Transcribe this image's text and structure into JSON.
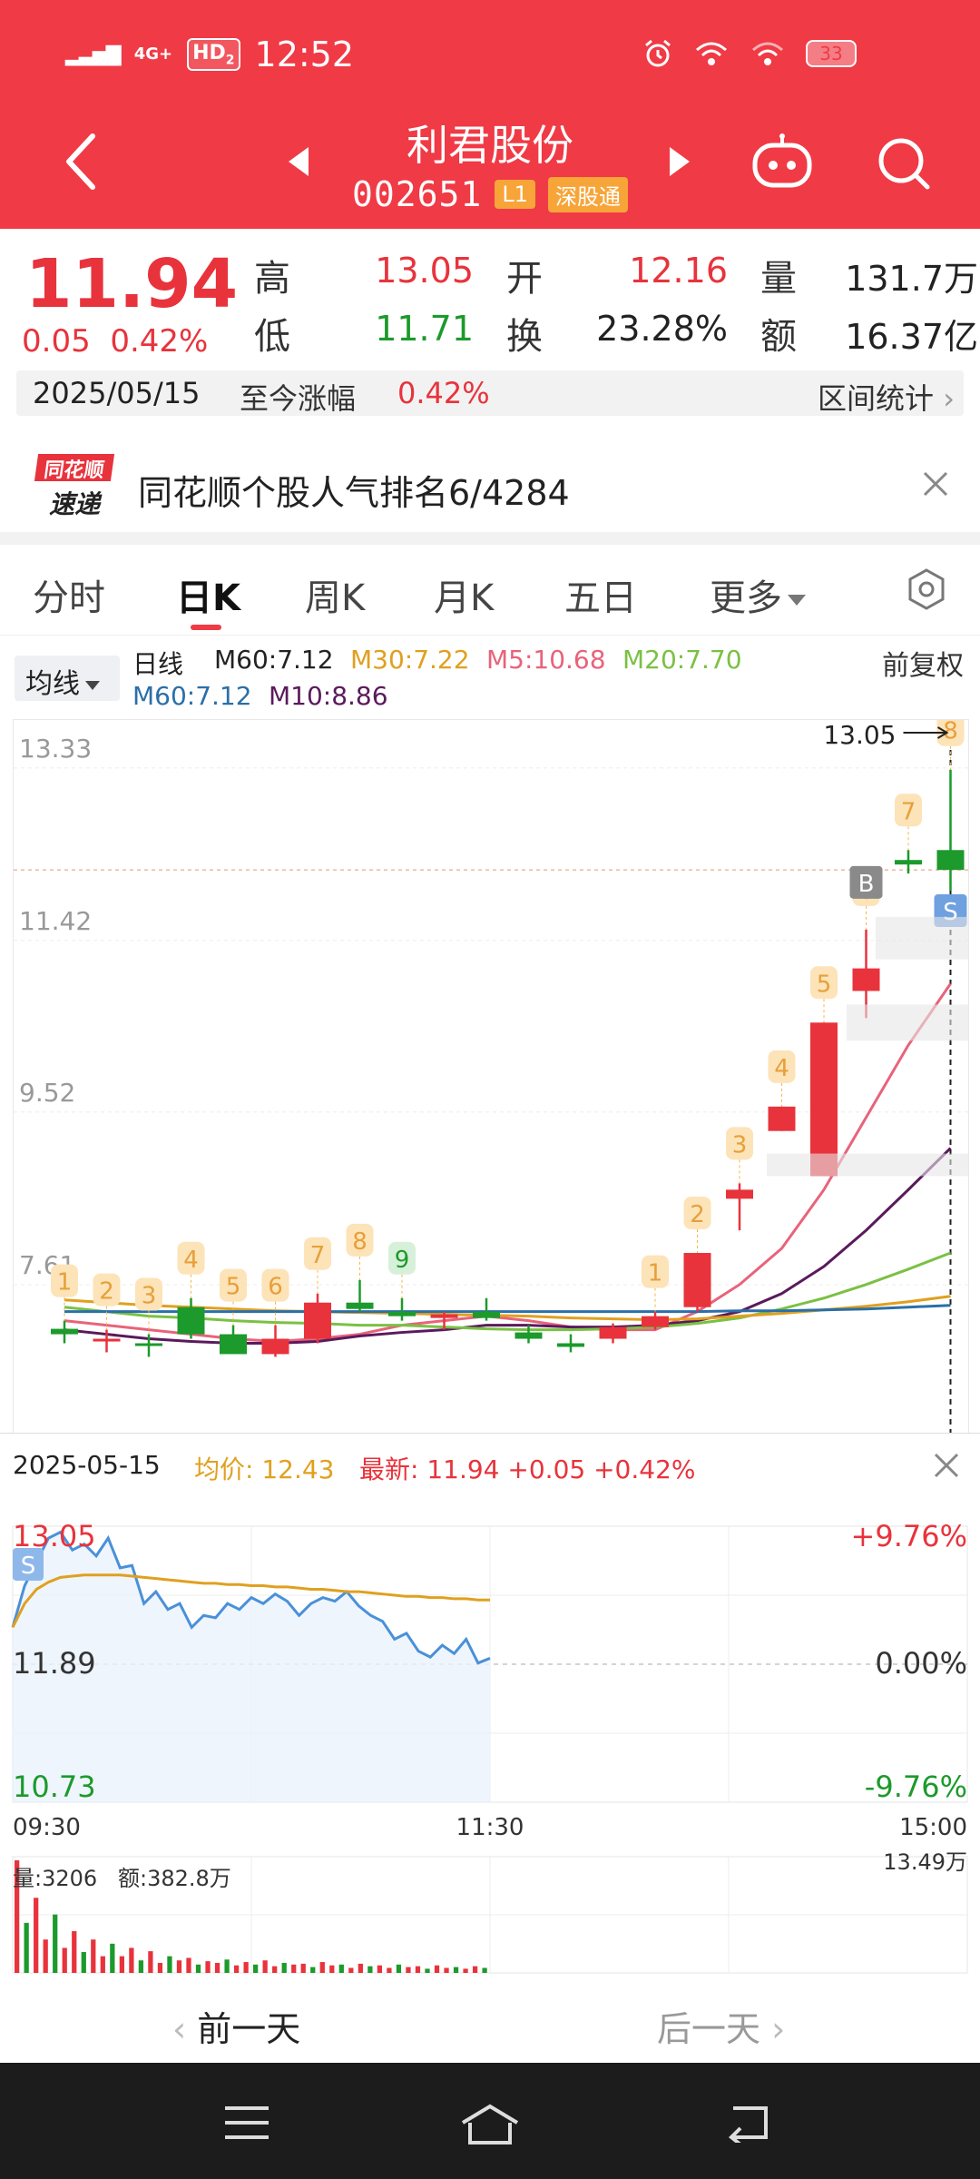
{
  "status": {
    "network": "4G+",
    "hd": "HD",
    "hd_sub": "2",
    "time": "12:52",
    "battery": "33"
  },
  "header": {
    "title": "利君股份",
    "code": "002651",
    "level_badge": "L1",
    "connect_badge": "深股通",
    "icons": [
      "back-icon",
      "prev-stock-icon",
      "next-stock-icon",
      "robot-icon",
      "search-icon"
    ]
  },
  "quote": {
    "price": "11.94",
    "change": "0.05",
    "change_pct": "0.42%",
    "high_label": "高",
    "high": "13.05",
    "open_label": "开",
    "open": "12.16",
    "volume_label": "量",
    "volume": "131.7万",
    "low_label": "低",
    "low": "11.71",
    "turnover_label": "换",
    "turnover": "23.28%",
    "amount_label": "额",
    "amount": "16.37亿",
    "range_date": "2025/05/15",
    "range_label": "至今涨幅",
    "range_value": "0.42%",
    "range_stat": "区间统计"
  },
  "rank": {
    "logo_top": "同花顺",
    "logo_bottom": "速递",
    "text": "同花顺个股人气排名6/4284"
  },
  "tabs": [
    "分时",
    "日K",
    "周K",
    "月K",
    "五日",
    "更多"
  ],
  "active_tab": "日K",
  "ma_legend": {
    "selector": "均线",
    "line_type": "日线",
    "items": [
      {
        "label": "M60:7.12",
        "color": "#222222"
      },
      {
        "label": "M30:7.22",
        "color": "#e0a01f"
      },
      {
        "label": "M5:10.68",
        "color": "#e8637a"
      },
      {
        "label": "M20:7.70",
        "color": "#7ac143"
      },
      {
        "label": "M60:7.12",
        "color": "#2a6fa8"
      },
      {
        "label": "M10:8.86",
        "color": "#5a1a5c"
      }
    ],
    "adjust": "前复权"
  },
  "chart_data": [
    {
      "type": "candlestick",
      "y_tick_labels": [
        "13.33",
        "11.42",
        "9.52",
        "7.61"
      ],
      "high_marker": "13.05",
      "ylim": [
        5.7,
        13.6
      ],
      "candles": [
        {
          "o": 6.86,
          "h": 6.95,
          "l": 6.7,
          "c": 6.8,
          "label": "1"
        },
        {
          "o": 6.72,
          "h": 6.85,
          "l": 6.6,
          "c": 6.75,
          "label": "2"
        },
        {
          "o": 6.7,
          "h": 6.8,
          "l": 6.55,
          "c": 6.68,
          "label": "3"
        },
        {
          "o": 7.1,
          "h": 7.2,
          "l": 6.75,
          "c": 6.8,
          "label": "4"
        },
        {
          "o": 6.8,
          "h": 6.9,
          "l": 6.65,
          "c": 6.58,
          "label": "5"
        },
        {
          "o": 6.58,
          "h": 6.9,
          "l": 6.55,
          "c": 6.75,
          "label": "6"
        },
        {
          "o": 6.75,
          "h": 7.25,
          "l": 6.7,
          "c": 7.15,
          "label": "7"
        },
        {
          "o": 7.15,
          "h": 7.4,
          "l": 7.05,
          "c": 7.08,
          "label": "8"
        },
        {
          "o": 7.05,
          "h": 7.2,
          "l": 6.95,
          "c": 7.0,
          "label": "9"
        },
        {
          "o": 6.98,
          "h": 7.05,
          "l": 6.85,
          "c": 7.02,
          "label": ""
        },
        {
          "o": 7.05,
          "h": 7.2,
          "l": 6.95,
          "c": 6.98,
          "label": ""
        },
        {
          "o": 6.82,
          "h": 6.9,
          "l": 6.7,
          "c": 6.75,
          "label": ""
        },
        {
          "o": 6.7,
          "h": 6.8,
          "l": 6.6,
          "c": 6.66,
          "label": ""
        },
        {
          "o": 6.75,
          "h": 6.92,
          "l": 6.7,
          "c": 6.88,
          "label": ""
        },
        {
          "o": 6.88,
          "h": 7.05,
          "l": 6.85,
          "c": 7.0,
          "label": "1"
        },
        {
          "o": 7.1,
          "h": 7.7,
          "l": 7.05,
          "c": 7.7,
          "label": "2"
        },
        {
          "o": 8.3,
          "h": 8.47,
          "l": 7.95,
          "c": 8.4,
          "label": "3"
        },
        {
          "o": 9.05,
          "h": 9.32,
          "l": 9.05,
          "c": 9.32,
          "label": "4"
        },
        {
          "o": 8.55,
          "h": 10.25,
          "l": 8.55,
          "c": 10.25,
          "label": "5"
        },
        {
          "o": 10.6,
          "h": 11.28,
          "l": 10.3,
          "c": 10.85,
          "label": "6"
        },
        {
          "o": 12.05,
          "h": 12.16,
          "l": 11.9,
          "c": 12.0,
          "label": "7"
        },
        {
          "o": 12.16,
          "h": 13.05,
          "l": 11.71,
          "c": 11.94,
          "label": "8"
        }
      ],
      "trade_marks": [
        {
          "index": 19,
          "text": "B"
        },
        {
          "index": 21,
          "text": "S"
        }
      ],
      "ma_lines": [
        {
          "name": "M5",
          "color": "#e8637a",
          "values": [
            6.95,
            6.9,
            6.85,
            6.8,
            6.75,
            6.72,
            6.75,
            6.8,
            6.9,
            6.95,
            7.0,
            6.95,
            6.88,
            6.85,
            6.85,
            7.05,
            7.35,
            7.75,
            8.4,
            9.2,
            10.0,
            10.68
          ]
        },
        {
          "name": "M10",
          "color": "#5a1a5c",
          "values": [
            6.85,
            6.8,
            6.75,
            6.72,
            6.7,
            6.7,
            6.72,
            6.78,
            6.82,
            6.85,
            6.9,
            6.9,
            6.88,
            6.88,
            6.9,
            6.95,
            7.05,
            7.25,
            7.55,
            7.95,
            8.4,
            8.86
          ]
        },
        {
          "name": "M20",
          "color": "#7ac143",
          "values": [
            7.1,
            7.05,
            7.0,
            6.98,
            6.95,
            6.93,
            6.92,
            6.9,
            6.9,
            6.88,
            6.86,
            6.85,
            6.85,
            6.86,
            6.88,
            6.92,
            6.98,
            7.08,
            7.2,
            7.35,
            7.52,
            7.7
          ]
        },
        {
          "name": "M30",
          "color": "#e0a01f",
          "values": [
            7.18,
            7.15,
            7.12,
            7.1,
            7.08,
            7.06,
            7.05,
            7.04,
            7.03,
            7.02,
            7.01,
            7.0,
            6.98,
            6.97,
            6.96,
            6.97,
            7.0,
            7.03,
            7.07,
            7.11,
            7.16,
            7.22
          ]
        },
        {
          "name": "M60",
          "color": "#2a6fa8",
          "values": [
            7.05,
            7.05,
            7.05,
            7.05,
            7.05,
            7.05,
            7.05,
            7.05,
            7.05,
            7.05,
            7.05,
            7.05,
            7.05,
            7.05,
            7.05,
            7.05,
            7.06,
            7.06,
            7.07,
            7.08,
            7.1,
            7.12
          ]
        }
      ]
    },
    {
      "type": "line",
      "y_tick_labels": [
        "13.05",
        "11.89",
        "10.73"
      ],
      "pct_tick_labels": [
        "+9.76%",
        "0.00%",
        "-9.76%"
      ],
      "x_tick_labels": [
        "09:30",
        "11:30",
        "15:00"
      ],
      "ylim": [
        10.73,
        13.05
      ],
      "prev_close": 11.89,
      "trade_mark": "S",
      "series": [
        {
          "name": "最新",
          "color": "#4a90d9",
          "values": [
            12.2,
            12.55,
            12.75,
            12.95,
            13.0,
            12.85,
            12.9,
            12.8,
            12.95,
            12.7,
            12.72,
            12.4,
            12.5,
            12.35,
            12.4,
            12.2,
            12.3,
            12.28,
            12.4,
            12.35,
            12.45,
            12.4,
            12.48,
            12.42,
            12.3,
            12.4,
            12.45,
            12.42,
            12.5,
            12.38,
            12.3,
            12.25,
            12.1,
            12.15,
            12.0,
            11.95,
            12.05,
            11.98,
            12.1,
            11.9,
            11.94
          ]
        },
        {
          "name": "均价",
          "color": "#e0a01f",
          "values": [
            12.2,
            12.4,
            12.52,
            12.58,
            12.62,
            12.63,
            12.64,
            12.64,
            12.64,
            12.64,
            12.63,
            12.62,
            12.61,
            12.6,
            12.59,
            12.58,
            12.57,
            12.57,
            12.56,
            12.56,
            12.55,
            12.55,
            12.54,
            12.54,
            12.53,
            12.52,
            12.52,
            12.51,
            12.5,
            12.5,
            12.49,
            12.48,
            12.47,
            12.46,
            12.46,
            12.45,
            12.45,
            12.44,
            12.44,
            12.43,
            12.43
          ]
        }
      ]
    },
    {
      "type": "bar",
      "max_label": "13.49万",
      "volume_label": "量:3206",
      "amount_label": "额:382.8万",
      "values": [
        13.49,
        6,
        9,
        4,
        7,
        3,
        5,
        2.5,
        4,
        2,
        3.5,
        2,
        3,
        1.5,
        2.6,
        1.2,
        2,
        1.5,
        1.8,
        1,
        1.4,
        1.2,
        1.6,
        0.9,
        1.3,
        1,
        1.5,
        0.8,
        1.2,
        1,
        1.1,
        0.7,
        1.3,
        0.9,
        1,
        0.6,
        1.1,
        0.8,
        0.9,
        0.6,
        1,
        0.7,
        0.8,
        0.5,
        0.9,
        0.6,
        0.7,
        0.5,
        0.8,
        0.6
      ]
    }
  ],
  "intraday": {
    "date": "2025-05-15",
    "avg_price_label": "均价: 12.43",
    "latest_label": "最新: 11.94 +0.05 +0.42%"
  },
  "day_nav": {
    "prev": "前一天",
    "next": "后一天"
  },
  "colors": {
    "header_red": "#f03a45",
    "up_red": "#e8333c",
    "down_green": "#1c9a2c"
  }
}
